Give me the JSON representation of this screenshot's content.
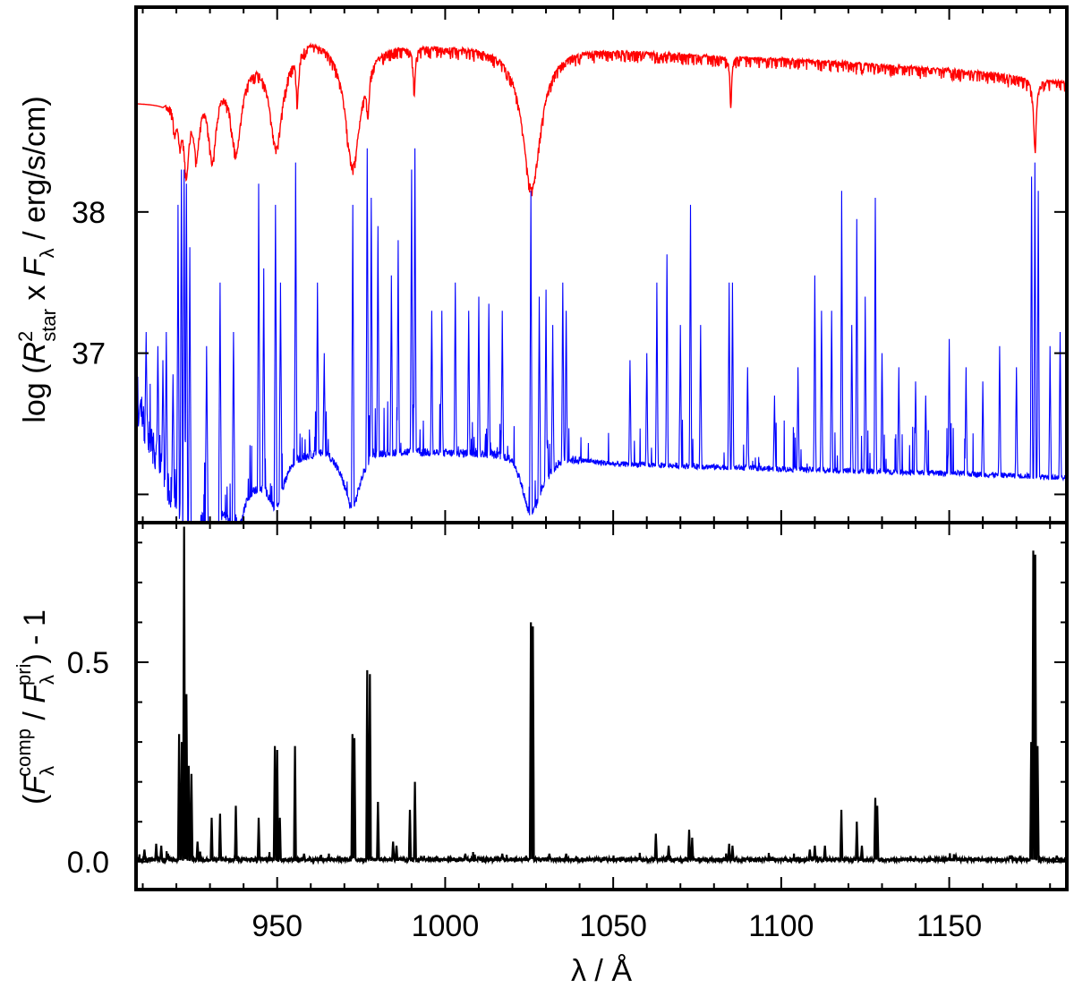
{
  "chart_data": [
    {
      "type": "line",
      "panel": "top",
      "ylabel": {
        "prefix": "log (",
        "R": "R",
        "R_sup": "2",
        "R_sub": "star",
        "times": " x ",
        "F": "F",
        "F_sub": "λ",
        "suffix": " / erg/s/cm)"
      },
      "xlim": [
        908,
        1185
      ],
      "ylim": [
        35.8,
        39.45
      ],
      "yticks": [
        36,
        37,
        38
      ],
      "ytick_labels": [
        "",
        "37",
        "38"
      ],
      "xticks": [
        950,
        1000,
        1050,
        1100,
        1150
      ],
      "grid": false,
      "series": [
        {
          "color": "#ff0000",
          "baseline": [
            [
              909,
              38.78
            ],
            [
              916,
              38.78
            ],
            [
              920,
              38.9
            ],
            [
              930,
              39.0
            ],
            [
              945,
              39.18
            ],
            [
              960,
              39.28
            ],
            [
              980,
              39.22
            ],
            [
              1000,
              39.2
            ],
            [
              1040,
              39.18
            ],
            [
              1080,
              39.12
            ],
            [
              1120,
              39.07
            ],
            [
              1160,
              39.0
            ],
            [
              1185,
              38.93
            ]
          ],
          "absorption_lines": [
            {
              "x": 919.5,
              "depth": 0.2,
              "width": 0.6
            },
            {
              "x": 921,
              "depth": 0.28,
              "width": 0.7
            },
            {
              "x": 923,
              "depth": 0.55,
              "width": 0.9
            },
            {
              "x": 926,
              "depth": 0.45,
              "width": 1.1
            },
            {
              "x": 930.7,
              "depth": 0.55,
              "width": 1.4
            },
            {
              "x": 937.8,
              "depth": 0.6,
              "width": 1.9
            },
            {
              "x": 949.7,
              "depth": 0.7,
              "width": 2.4
            },
            {
              "x": 956,
              "depth": 0.35,
              "width": 0.4
            },
            {
              "x": 972.5,
              "depth": 0.88,
              "width": 2.8
            },
            {
              "x": 977,
              "depth": 0.3,
              "width": 0.4
            },
            {
              "x": 990.8,
              "depth": 0.3,
              "width": 0.4
            },
            {
              "x": 1025.7,
              "depth": 1.0,
              "width": 3.3
            },
            {
              "x": 1085,
              "depth": 0.35,
              "width": 0.3
            },
            {
              "x": 1175.5,
              "depth": 0.5,
              "width": 0.5
            }
          ]
        },
        {
          "color": "#0000ff",
          "continuum": [
            [
              909,
              36.6
            ],
            [
              913,
              36.35
            ],
            [
              918,
              36.1
            ],
            [
              925,
              36.05
            ],
            [
              935,
              36.05
            ],
            [
              945,
              36.15
            ],
            [
              955,
              36.3
            ],
            [
              965,
              36.33
            ],
            [
              972,
              36.15
            ],
            [
              978,
              36.32
            ],
            [
              1000,
              36.3
            ],
            [
              1020,
              36.3
            ],
            [
              1025,
              36.1
            ],
            [
              1035,
              36.27
            ],
            [
              1050,
              36.22
            ],
            [
              1100,
              36.18
            ],
            [
              1150,
              36.15
            ],
            [
              1185,
              36.12
            ]
          ],
          "dips": [
            {
              "x": 922.5,
              "depth": 0.35,
              "width": 1.8
            },
            {
              "x": 926,
              "depth": 0.3,
              "width": 1.5
            },
            {
              "x": 930.7,
              "depth": 0.35,
              "width": 1.8
            },
            {
              "x": 937.8,
              "depth": 0.35,
              "width": 2.2
            },
            {
              "x": 949.7,
              "depth": 0.3,
              "width": 2.6
            },
            {
              "x": 972.5,
              "depth": 0.25,
              "width": 2.6
            },
            {
              "x": 1025.7,
              "depth": 0.25,
              "width": 3.0
            }
          ],
          "emission_lines": [
            [
              911,
              37.15
            ],
            [
              914.5,
              37.05
            ],
            [
              916,
              36.95
            ],
            [
              917,
              37.15
            ],
            [
              919,
              36.85
            ],
            [
              920.5,
              38.05
            ],
            [
              921.5,
              38.3
            ],
            [
              922.3,
              38.3
            ],
            [
              923,
              38.2
            ],
            [
              924,
              37.75
            ],
            [
              929,
              37.05
            ],
            [
              933,
              37.5
            ],
            [
              937,
              37.15
            ],
            [
              944.5,
              38.2
            ],
            [
              946,
              37.6
            ],
            [
              949.5,
              38.05
            ],
            [
              951,
              37.5
            ],
            [
              955.5,
              38.35
            ],
            [
              962,
              37.5
            ],
            [
              964,
              37.0
            ],
            [
              972.5,
              38.05
            ],
            [
              976.8,
              38.45
            ],
            [
              978,
              38.1
            ],
            [
              980,
              37.9
            ],
            [
              984,
              37.55
            ],
            [
              986,
              37.8
            ],
            [
              990,
              38.3
            ],
            [
              991,
              38.45
            ],
            [
              996,
              37.3
            ],
            [
              999,
              37.3
            ],
            [
              1003,
              37.5
            ],
            [
              1007,
              37.3
            ],
            [
              1010,
              37.4
            ],
            [
              1013,
              37.35
            ],
            [
              1017,
              37.3
            ],
            [
              1025.5,
              38.15
            ],
            [
              1028,
              37.4
            ],
            [
              1030,
              37.45
            ],
            [
              1032,
              37.2
            ],
            [
              1035,
              37.5
            ],
            [
              1036,
              37.3
            ],
            [
              1055,
              36.95
            ],
            [
              1060,
              37.0
            ],
            [
              1063,
              37.5
            ],
            [
              1066,
              37.7
            ],
            [
              1070,
              37.2
            ],
            [
              1073,
              38.05
            ],
            [
              1076,
              37.2
            ],
            [
              1084.5,
              37.5
            ],
            [
              1085.5,
              37.5
            ],
            [
              1090,
              36.9
            ],
            [
              1098,
              36.7
            ],
            [
              1105,
              36.9
            ],
            [
              1110,
              37.55
            ],
            [
              1112,
              37.3
            ],
            [
              1115,
              37.3
            ],
            [
              1118,
              38.15
            ],
            [
              1121,
              37.2
            ],
            [
              1122.5,
              37.95
            ],
            [
              1125,
              37.4
            ],
            [
              1128,
              38.1
            ],
            [
              1130,
              37.0
            ],
            [
              1135,
              36.9
            ],
            [
              1140,
              36.8
            ],
            [
              1143,
              36.7
            ],
            [
              1150,
              37.1
            ],
            [
              1155,
              36.9
            ],
            [
              1160,
              36.8
            ],
            [
              1165,
              37.05
            ],
            [
              1170,
              36.9
            ],
            [
              1174.5,
              38.25
            ],
            [
              1175.5,
              38.35
            ],
            [
              1176.5,
              38.15
            ],
            [
              1180,
              37.05
            ],
            [
              1183,
              37.15
            ]
          ]
        }
      ]
    },
    {
      "type": "line",
      "panel": "bottom",
      "xlabel": "λ / Å",
      "ylabel": {
        "open": "(",
        "F1": "F",
        "F1_sub": "λ",
        "F1_sup": "comp",
        "slash": " / ",
        "F2": "F",
        "F2_sub": "λ",
        "F2_sup": "pri",
        "close": ") - 1"
      },
      "xlim": [
        908,
        1185
      ],
      "ylim": [
        -0.07,
        0.85
      ],
      "yticks": [
        0.0,
        0.5
      ],
      "ytick_labels": [
        "0.0",
        "0.5"
      ],
      "xticks": [
        950,
        1000,
        1050,
        1100,
        1150
      ],
      "xtick_labels": [
        "950",
        "1000",
        "1050",
        "1100",
        "1150"
      ],
      "grid": false,
      "series": [
        {
          "color": "#000000",
          "baseline": 0.005,
          "spikes": [
            [
              910.5,
              0.03
            ],
            [
              914,
              0.045
            ],
            [
              915.5,
              0.04
            ],
            [
              917.5,
              0.02
            ],
            [
              920.8,
              0.32
            ],
            [
              921.6,
              0.3
            ],
            [
              922.3,
              0.84
            ],
            [
              923.0,
              0.42
            ],
            [
              923.7,
              0.24
            ],
            [
              924.5,
              0.22
            ],
            [
              926.3,
              0.05
            ],
            [
              930.5,
              0.11
            ],
            [
              933.0,
              0.12
            ],
            [
              937.7,
              0.14
            ],
            [
              944.5,
              0.11
            ],
            [
              949.3,
              0.29
            ],
            [
              950.0,
              0.28
            ],
            [
              950.8,
              0.11
            ],
            [
              955.3,
              0.29
            ],
            [
              958,
              0.02
            ],
            [
              972.4,
              0.32
            ],
            [
              973.0,
              0.31
            ],
            [
              976.8,
              0.48
            ],
            [
              977.6,
              0.47
            ],
            [
              980.0,
              0.15
            ],
            [
              984.5,
              0.05
            ],
            [
              985.5,
              0.04
            ],
            [
              989.5,
              0.13
            ],
            [
              991.0,
              0.2
            ],
            [
              993,
              0.01
            ],
            [
              1006,
              0.02
            ],
            [
              1010,
              0.01
            ],
            [
              1017,
              0.02
            ],
            [
              1025.5,
              0.6
            ],
            [
              1026.1,
              0.59
            ],
            [
              1031,
              0.02
            ],
            [
              1036,
              0.02
            ],
            [
              1062.7,
              0.07
            ],
            [
              1066.5,
              0.04
            ],
            [
              1072.6,
              0.08
            ],
            [
              1073.5,
              0.06
            ],
            [
              1084.5,
              0.045
            ],
            [
              1085.5,
              0.04
            ],
            [
              1090,
              0.01
            ],
            [
              1108.5,
              0.03
            ],
            [
              1110,
              0.04
            ],
            [
              1113,
              0.04
            ],
            [
              1117.9,
              0.13
            ],
            [
              1122.5,
              0.1
            ],
            [
              1124,
              0.04
            ],
            [
              1128.0,
              0.16
            ],
            [
              1128.6,
              0.14
            ],
            [
              1140,
              0.01
            ],
            [
              1152,
              0.015
            ],
            [
              1168,
              0.015
            ],
            [
              1174.4,
              0.3
            ],
            [
              1175.0,
              0.78
            ],
            [
              1175.6,
              0.77
            ],
            [
              1176.3,
              0.29
            ],
            [
              1182,
              0.015
            ]
          ]
        }
      ]
    }
  ]
}
